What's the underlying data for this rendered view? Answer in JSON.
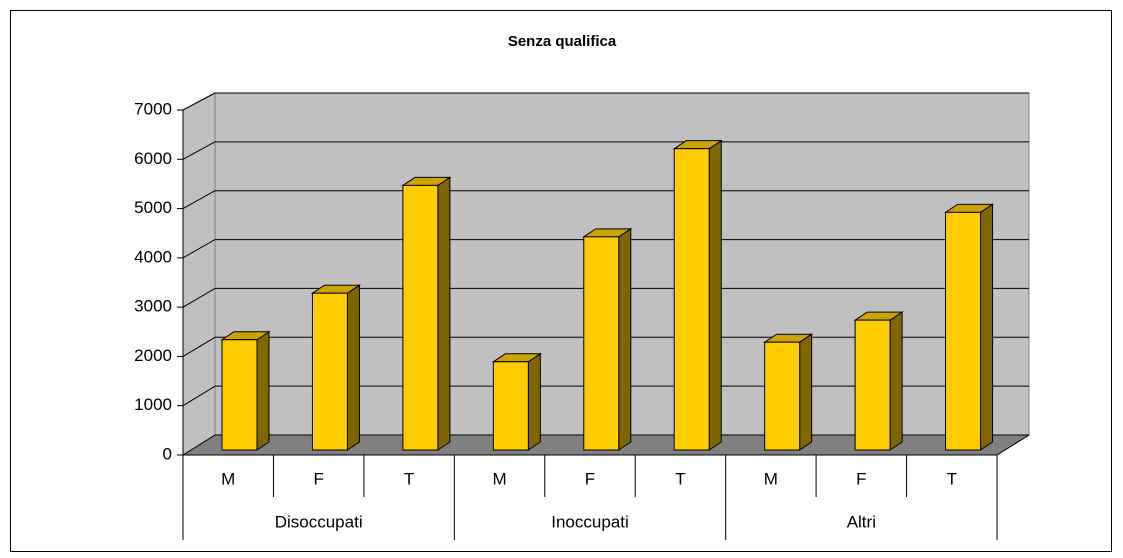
{
  "chart_data": {
    "type": "bar3d",
    "title": "Senza qualifica",
    "categories": [
      "M",
      "F",
      "T",
      "M",
      "F",
      "T",
      "M",
      "F",
      "T"
    ],
    "group_labels": [
      "Disoccupati",
      "Inoccupati",
      "Altri"
    ],
    "values": [
      2250,
      3200,
      5400,
      1800,
      4350,
      6150,
      2200,
      2650,
      4850
    ],
    "color": "#ffcc00",
    "ylim": [
      0,
      7000
    ],
    "yticks": [
      0,
      1000,
      2000,
      3000,
      4000,
      5000,
      6000,
      7000
    ],
    "grid": true
  }
}
